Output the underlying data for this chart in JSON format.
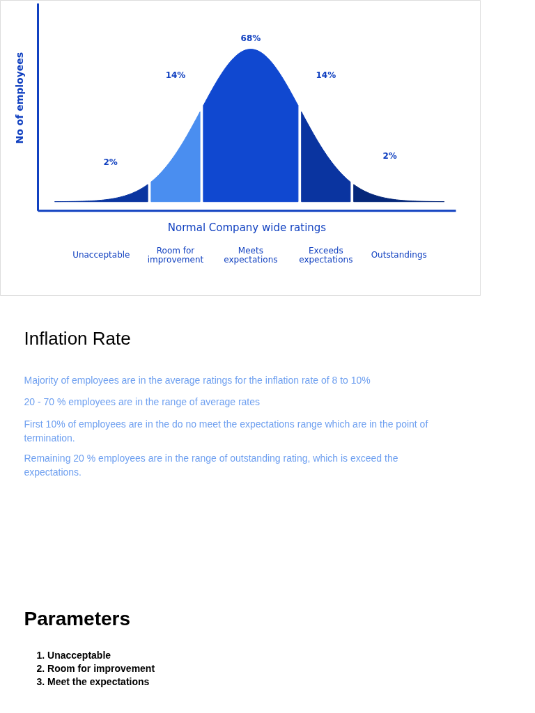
{
  "chart_data": {
    "type": "other",
    "xlabel": "Normal Company wide ratings",
    "ylabel": "No of employees",
    "categories": [
      "Unacceptable",
      "Room for improvement",
      "Meets expectations",
      "Exceeds expectations",
      "Outstandings"
    ],
    "values": [
      2,
      14,
      68,
      14,
      2
    ],
    "value_labels": [
      "2%",
      "14%",
      "68%",
      "14%",
      "2%"
    ],
    "colors": [
      "#0a35a0",
      "#4a8ef0",
      "#1048d0",
      "#0a34a0",
      "#06287a"
    ],
    "annotations": [
      "Inflation Rate",
      "Majority of employees are in the average ratings for the inflation rate of 8 to 10%",
      "20 - 70 % employees are in the range of average rates",
      "First 10% of employees are in the do no meet the expectations range which are in the point of termination.",
      "Remaining 20 % employees are in the range of outstanding rating, which is exceed the expectations.",
      "Parameters",
      "1. Unacceptable",
      "2. Room for improvement",
      "3. Meet the expectations"
    ]
  }
}
